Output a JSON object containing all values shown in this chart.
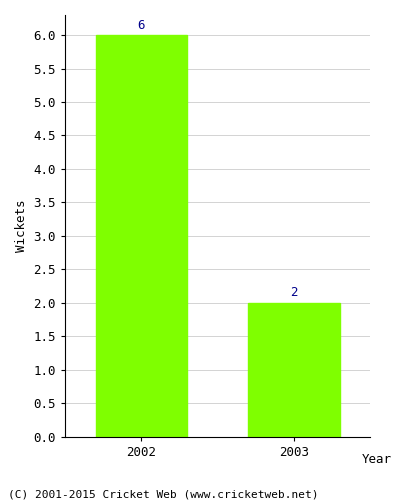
{
  "categories": [
    "2002",
    "2003"
  ],
  "values": [
    6,
    2
  ],
  "bar_color": "#7fff00",
  "bar_edge_color": "#7fff00",
  "xlabel": "Year",
  "ylabel": "Wickets",
  "ylim": [
    0,
    6.3
  ],
  "yticks": [
    0.0,
    0.5,
    1.0,
    1.5,
    2.0,
    2.5,
    3.0,
    3.5,
    4.0,
    4.5,
    5.0,
    5.5,
    6.0
  ],
  "label_color": "#00008b",
  "label_fontsize": 9,
  "axis_fontsize": 9,
  "tick_fontsize": 9,
  "footer_text": "(C) 2001-2015 Cricket Web (www.cricketweb.net)",
  "footer_fontsize": 8,
  "background_color": "#ffffff",
  "plot_bg_color": "#ffffff",
  "grid_color": "#cccccc"
}
